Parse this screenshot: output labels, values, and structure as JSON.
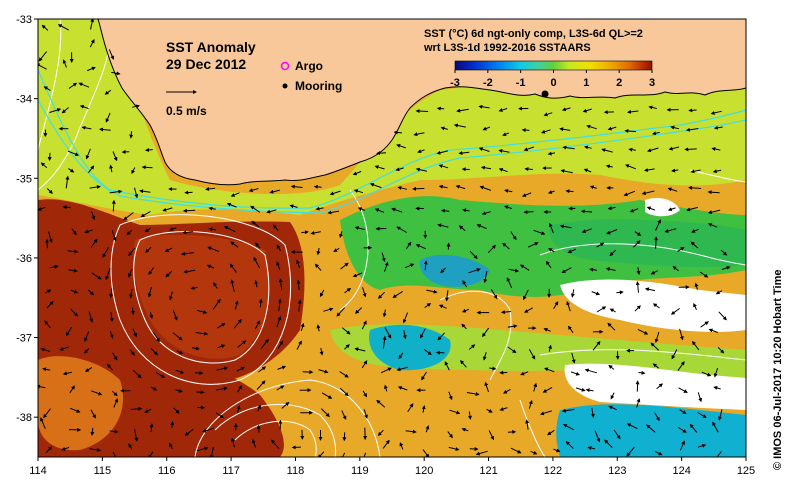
{
  "map": {
    "title": "SST Anomaly",
    "date": "29 Dec 2012",
    "scale_label": "0.5 m/s",
    "legend": {
      "argo": "Argo",
      "mooring": "Mooring"
    },
    "product_line1": "SST (°C) 6d ngt-only comp, L3S-6d QL>=2",
    "product_line2": "wrt L3S-1d 1992-2016 SSTAARS",
    "credit": "© IMOS 06-Jul-2017 10:20 Hobart Time",
    "colorbar": {
      "min": -3,
      "max": 3,
      "ticks": [
        "-3",
        "-2",
        "-1",
        "0",
        "1",
        "2",
        "3"
      ],
      "colors": [
        "#08087a",
        "#0030d0",
        "#0080f0",
        "#10c8e8",
        "#40d0a0",
        "#60d040",
        "#c8e820",
        "#f0e000",
        "#f0b000",
        "#e07000",
        "#c03000",
        "#901000"
      ]
    },
    "x_axis": {
      "range": [
        114,
        125
      ],
      "ticks": [
        "114",
        "115",
        "116",
        "117",
        "118",
        "119",
        "120",
        "121",
        "122",
        "123",
        "124",
        "125"
      ]
    },
    "y_axis": {
      "range": [
        -38.5,
        -33
      ],
      "ticks": [
        "-33",
        "-34",
        "-35",
        "-36",
        "-37",
        "-38"
      ]
    },
    "colors": {
      "land": "#f8c89a",
      "warm_strong": "#a02808",
      "warm": "#e8a020",
      "neutral": "#c8e030",
      "cool": "#40c040",
      "cold": "#10b0d0",
      "missing": "#ffffff",
      "argo": "#ff00ff",
      "contour_white": "#ffffff",
      "contour_cyan": "#40e0e0"
    }
  }
}
